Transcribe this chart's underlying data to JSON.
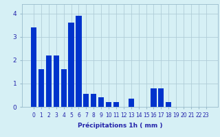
{
  "values": [
    3.4,
    1.6,
    2.2,
    2.2,
    1.6,
    3.6,
    3.9,
    0.55,
    0.55,
    0.4,
    0.2,
    0.2,
    0.0,
    0.35,
    0.0,
    0.0,
    0.8,
    0.8,
    0.2,
    0.0,
    0.0,
    0.0,
    0.0,
    0.0
  ],
  "categories": [
    "0",
    "1",
    "2",
    "3",
    "4",
    "5",
    "6",
    "7",
    "8",
    "9",
    "10",
    "11",
    "12",
    "13",
    "14",
    "15",
    "16",
    "17",
    "18",
    "19",
    "20",
    "21",
    "22",
    "23"
  ],
  "bar_color": "#0033cc",
  "background_color": "#d6f0f5",
  "grid_color": "#b0cdd8",
  "xlabel": "Précipitations 1h ( mm )",
  "ylim": [
    0,
    4.4
  ],
  "yticks": [
    0,
    1,
    2,
    3,
    4
  ],
  "bar_width": 0.75,
  "xlabel_fontsize": 6.5,
  "tick_fontsize": 5.5,
  "label_color": "#2222aa"
}
